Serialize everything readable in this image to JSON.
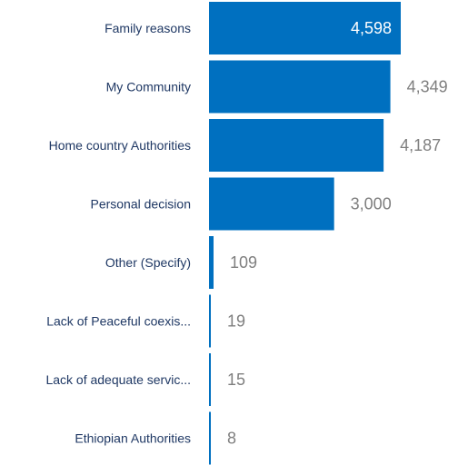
{
  "chart_data": {
    "type": "bar",
    "orientation": "horizontal",
    "title": "",
    "xlabel": "",
    "ylabel": "",
    "categories": [
      "Family reasons",
      "My Community",
      "Home country Authorities",
      "Personal decision",
      "Other (Specify)",
      "Lack of Peaceful coexis...",
      "Lack of adequate servic...",
      "Ethiopian Authorities"
    ],
    "values": [
      4598,
      4349,
      4187,
      3000,
      109,
      19,
      15,
      8
    ],
    "value_labels": [
      "4,598",
      "4,349",
      "4,187",
      "3,000",
      "109",
      "19",
      "15",
      "8"
    ],
    "xlim": [
      0,
      4598
    ],
    "grid": false,
    "legend": "none",
    "colors": {
      "bar": "#0070c0",
      "bar_edge": "#4aa0e0",
      "label_inside": "#ffffff",
      "label_outside": "#7f7f7f",
      "category_text": "#1f3864"
    }
  }
}
